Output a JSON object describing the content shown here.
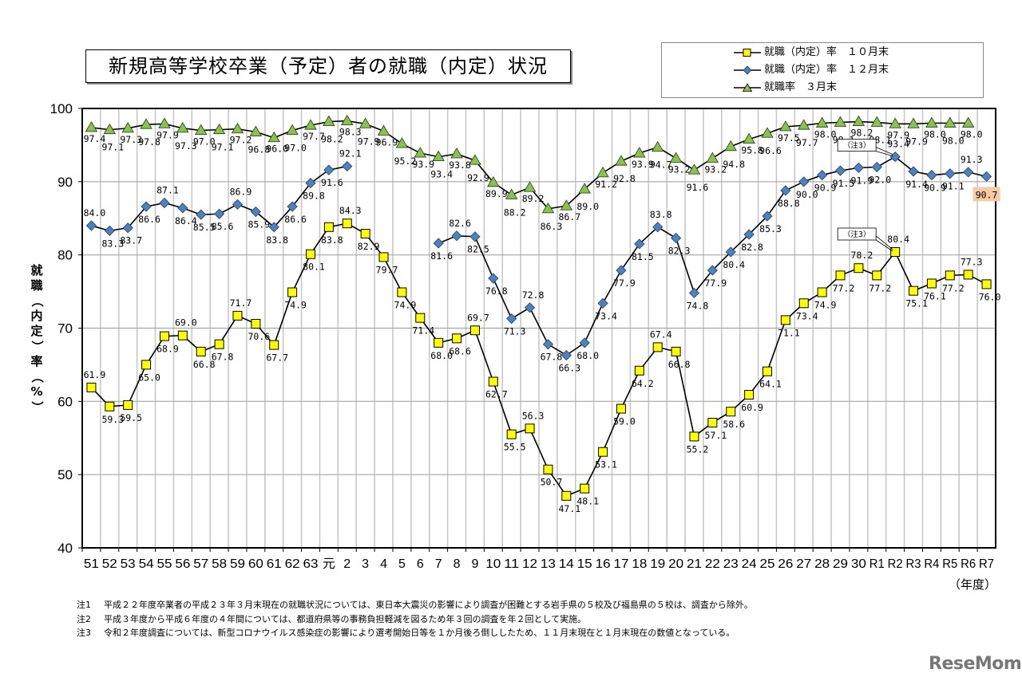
{
  "title": "新規高等学校卒業（予定）者の就職（内定）状況",
  "legend": [
    {
      "label": "就職（内定）率　１０月末",
      "marker": "square",
      "color": "#ffff00"
    },
    {
      "label": "就職（内定）率　１２月末",
      "marker": "diamond",
      "color": "#4f81bd"
    },
    {
      "label": "就職率　３月末",
      "marker": "triangle",
      "color": "#8cc152"
    }
  ],
  "y_axis_label": "就職（内定）率（%）",
  "x_axis_unit": "（年度）",
  "callouts": [
    {
      "text": "（注3）",
      "series": "dec",
      "category": "R2"
    },
    {
      "text": "（注3）",
      "series": "oct",
      "category": "R2"
    }
  ],
  "highlight_label": {
    "text": "90.7",
    "color": "#f8cba6"
  },
  "notes": [
    {
      "label": "注1",
      "text": "平成２２年度卒業者の平成２３年３月末現在の就職状況については、東日本大震災の影響により調査が困難とする岩手県の５校及び福島県の５校は、調査から除外。"
    },
    {
      "label": "注2",
      "text": "平成３年度から平成６年度の４年間については、都道府県等の事務負担軽減を図るため年３回の調査を年２回として実施。"
    },
    {
      "label": "注3",
      "text": "令和２年度調査については、新型コロナウイルス感染症の影響により選考開始日等を１か月後ろ倒ししたため、１１月末現在と１月末現在の数値となっている。"
    }
  ],
  "watermark": "ReseMom",
  "chart_data": {
    "type": "line",
    "title": "新規高等学校卒業（予定）者の就職（内定）状況",
    "xlabel": "（年度）",
    "ylabel": "就職（内定）率（%）",
    "ylim": [
      40,
      100
    ],
    "yticks": [
      40,
      50,
      60,
      70,
      80,
      90,
      100
    ],
    "grid": true,
    "legend_position": "top-right",
    "categories": [
      "51",
      "52",
      "53",
      "54",
      "55",
      "56",
      "57",
      "58",
      "59",
      "60",
      "61",
      "62",
      "63",
      "元",
      "2",
      "3",
      "4",
      "5",
      "6",
      "7",
      "8",
      "9",
      "10",
      "11",
      "12",
      "13",
      "14",
      "15",
      "16",
      "17",
      "18",
      "19",
      "20",
      "21",
      "22",
      "23",
      "24",
      "25",
      "26",
      "27",
      "28",
      "29",
      "30",
      "R1",
      "R2",
      "R3",
      "R4",
      "R5",
      "R6",
      "R7"
    ],
    "series": [
      {
        "name": "就職（内定）率　１０月末",
        "key": "oct",
        "marker": "square",
        "color": "#ffff00",
        "values": [
          61.9,
          59.3,
          59.5,
          65.0,
          68.9,
          69.0,
          66.8,
          67.8,
          71.7,
          70.6,
          67.7,
          74.9,
          80.1,
          83.8,
          84.3,
          82.9,
          79.7,
          74.9,
          71.4,
          68.0,
          68.6,
          69.7,
          62.7,
          55.5,
          56.3,
          50.7,
          47.1,
          48.1,
          53.1,
          59.0,
          64.2,
          67.4,
          66.8,
          55.2,
          57.1,
          58.6,
          60.9,
          64.1,
          71.1,
          73.4,
          74.9,
          77.2,
          78.2,
          77.2,
          80.4,
          75.1,
          76.1,
          77.2,
          77.3,
          76.0
        ]
      },
      {
        "name": "就職（内定）率　１２月末",
        "key": "dec",
        "marker": "diamond",
        "color": "#4f81bd",
        "values": [
          84.0,
          83.3,
          83.7,
          86.6,
          87.1,
          86.4,
          85.5,
          85.6,
          86.9,
          85.9,
          83.8,
          86.6,
          89.8,
          91.6,
          92.1,
          null,
          null,
          null,
          null,
          81.6,
          82.6,
          82.5,
          76.8,
          71.3,
          72.8,
          67.8,
          66.3,
          68.0,
          73.4,
          77.9,
          81.5,
          83.8,
          82.3,
          74.8,
          77.9,
          80.4,
          82.8,
          85.3,
          88.8,
          90.0,
          90.9,
          91.5,
          91.9,
          92.0,
          93.4,
          91.4,
          90.9,
          91.1,
          91.3,
          90.7
        ]
      },
      {
        "name": "就職率　３月末",
        "key": "mar",
        "marker": "triangle",
        "color": "#8cc152",
        "values": [
          97.4,
          97.1,
          97.3,
          97.8,
          97.9,
          97.3,
          97.0,
          97.1,
          97.2,
          96.8,
          96.0,
          97.0,
          97.7,
          98.2,
          98.3,
          97.9,
          96.9,
          95.2,
          93.9,
          93.4,
          93.8,
          92.9,
          89.9,
          88.2,
          89.2,
          86.3,
          86.7,
          89.0,
          91.2,
          92.8,
          93.9,
          94.7,
          93.2,
          91.6,
          93.2,
          94.8,
          95.8,
          96.6,
          97.5,
          97.7,
          98.0,
          98.1,
          98.2,
          98.1,
          97.9,
          97.9,
          98.0,
          98.0,
          98.0,
          null
        ]
      }
    ]
  }
}
